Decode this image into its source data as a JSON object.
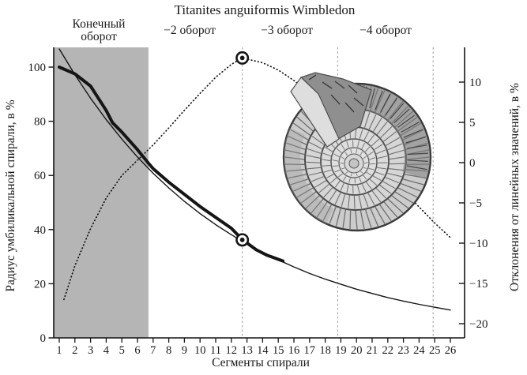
{
  "figure": {
    "title": "Titanites anguiformis Wimbledon",
    "whorl_labels": {
      "final_line1": "Конечный",
      "final_line2": "оборот",
      "minus2": "−2 оборот",
      "minus3": "−3 оборот",
      "minus4": "−4 оборот"
    }
  },
  "axes": {
    "left_title": "Радиус умбиликальной спирали, в %",
    "right_title": "Отклонения от линейных значений, в %",
    "x_title": "Сегменты спирали"
  },
  "colors": {
    "shaded_region": "#b5b5b5",
    "curves": "#151515",
    "dashed_guides": "#9a9a9a",
    "background": "#ffffff",
    "ammonite_light": "#d6d6d6",
    "ammonite_dark": "#6e6e6e"
  },
  "chart_data": {
    "type": "line",
    "title": "Titanites anguiformis Wimbledon",
    "x_axis": {
      "label": "Сегменты спирали",
      "ticks": [
        1,
        2,
        3,
        4,
        5,
        6,
        7,
        8,
        9,
        10,
        11,
        12,
        13,
        14,
        15,
        16,
        17,
        18,
        19,
        20,
        21,
        22,
        23,
        24,
        25,
        26
      ],
      "range": [
        1,
        26
      ]
    },
    "left_y_axis": {
      "label": "Радиус умбиликальной спирали, в %",
      "ticks": [
        100,
        80,
        60,
        40,
        20,
        0
      ],
      "range": [
        0,
        107
      ]
    },
    "right_y_axis": {
      "label": "Отклонения от линейных значений, в %",
      "ticks": [
        10,
        5,
        0,
        -5,
        -10,
        -15,
        -20
      ],
      "range": [
        -21.5,
        14.3
      ]
    },
    "grid": "off",
    "legend": "none",
    "shaded_region": {
      "from_x": 0.65,
      "to_x": 6.7,
      "label": "Конечный оборот"
    },
    "whorl_boundaries_x": [
      6.7,
      12.7,
      18.8,
      24.9
    ],
    "series": [
      {
        "name": "observed_umbilical_radius_pct",
        "style": "thick-solid",
        "axis": "left",
        "points": [
          [
            1,
            100
          ],
          [
            2,
            97.5
          ],
          [
            3,
            93
          ],
          [
            4,
            84
          ],
          [
            4.4,
            79.5
          ],
          [
            5,
            76
          ],
          [
            6,
            69.5
          ],
          [
            6.7,
            64.5
          ],
          [
            7,
            62.5
          ],
          [
            8,
            57.5
          ],
          [
            9,
            53
          ],
          [
            10,
            48.5
          ],
          [
            11,
            44.5
          ],
          [
            12,
            40.5
          ],
          [
            12.7,
            36.3
          ],
          [
            13.6,
            32.5
          ],
          [
            14.3,
            30.5
          ],
          [
            15.3,
            28.4
          ]
        ]
      },
      {
        "name": "fitted_exponential_radius_pct",
        "style": "thin-solid",
        "axis": "left",
        "x_start": 1,
        "values": [
          106.7,
          97.2,
          88.5,
          80.6,
          73.4,
          66.8,
          60.8,
          55.4,
          50.4,
          45.9,
          41.8,
          38.1,
          34.7,
          31.6,
          28.8,
          26.2,
          23.8,
          21.7,
          19.8,
          18.0,
          16.4,
          14.9,
          13.6,
          12.4,
          11.3,
          10.3
        ]
      },
      {
        "name": "deviation_from_linear_pct",
        "style": "dotted",
        "axis": "right",
        "points": [
          [
            1.3,
            -17
          ],
          [
            2,
            -12.8
          ],
          [
            3,
            -8.2
          ],
          [
            4,
            -4.4
          ],
          [
            5,
            -1.6
          ],
          [
            6,
            0.3
          ],
          [
            7,
            2.2
          ],
          [
            8,
            4.3
          ],
          [
            9,
            6.5
          ],
          [
            10,
            8.6
          ],
          [
            11,
            10.6
          ],
          [
            12,
            12.2
          ],
          [
            12.7,
            13
          ],
          [
            14,
            12.4
          ],
          [
            15,
            11.5
          ],
          [
            16,
            10.2
          ],
          [
            17,
            8.7
          ],
          [
            18,
            6.9
          ],
          [
            19,
            5
          ],
          [
            20,
            3
          ],
          [
            21,
            0.8
          ],
          [
            22,
            -1.4
          ],
          [
            23,
            -3.5
          ],
          [
            24,
            -5.5
          ],
          [
            25,
            -7.5
          ],
          [
            26,
            -9.3
          ]
        ]
      }
    ],
    "highlight_markers": [
      {
        "series": "deviation_from_linear_pct",
        "x": 12.7,
        "value": 13,
        "axis": "right"
      },
      {
        "series": "fitted_exponential_radius_pct",
        "x": 12.7,
        "value": 36.2,
        "axis": "left"
      }
    ],
    "annotations": {
      "inset_image": "ammonite-fossil-photo"
    }
  }
}
